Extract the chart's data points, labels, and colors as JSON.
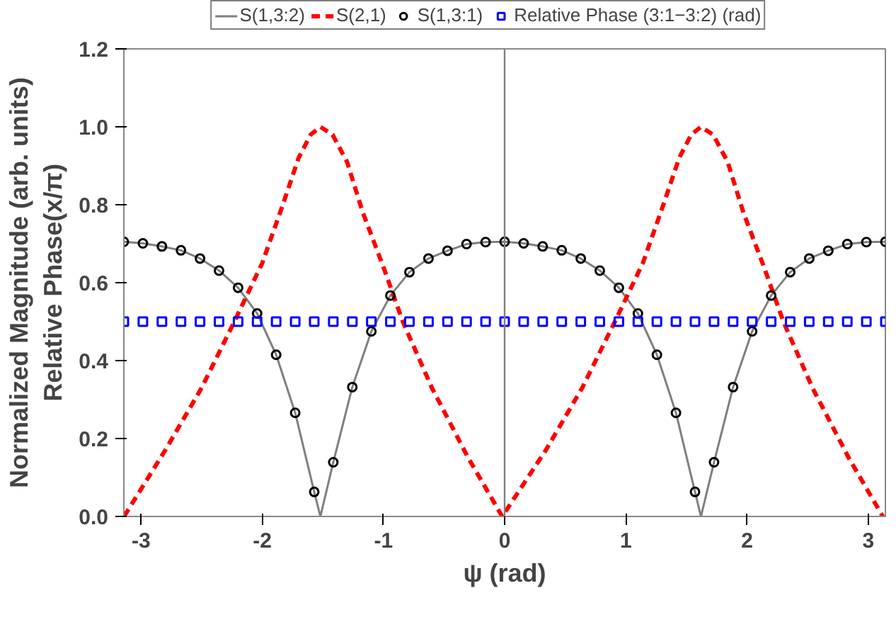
{
  "chart_data": {
    "type": "line",
    "xlabel": "ψ (rad)",
    "ylabel": "Normalized Magnitude (arb. units)\nRelative Phase(x/π)",
    "xlim": [
      -3.1416,
      3.1416
    ],
    "ylim": [
      0,
      1.2
    ],
    "xticks": [
      -3,
      -2,
      -1,
      0,
      1,
      2,
      3
    ],
    "yticks": [
      {
        "value": 0,
        "label": "0.0"
      },
      {
        "value": 0.2,
        "label": "0.2"
      },
      {
        "value": 0.4,
        "label": "0.4"
      },
      {
        "value": 0.6,
        "label": "0.6"
      },
      {
        "value": 0.8,
        "label": "0.8"
      },
      {
        "value": 1.0,
        "label": "1.0"
      },
      {
        "value": 1.2,
        "label": "1.2"
      }
    ],
    "grid": false,
    "legend": "top",
    "ref_lines": [
      {
        "axis": "x",
        "value": 0,
        "color": "#808080",
        "line_style": "solid"
      }
    ],
    "series": [
      {
        "name": "S(1,3:2)",
        "color": "#808080",
        "line_style": "solid",
        "marker": "none",
        "x": [
          -3.1416,
          -2.9845,
          -2.8274,
          -2.6704,
          -2.5133,
          -2.3562,
          -2.1991,
          -2.042,
          -1.885,
          -1.7279,
          -1.5708,
          -1.52,
          -1.4137,
          -1.2566,
          -1.0996,
          -0.9425,
          -0.7854,
          -0.6283,
          -0.4712,
          -0.3142,
          -0.1571,
          0,
          0.1571,
          0.3142,
          0.4712,
          0.6283,
          0.7854,
          0.9425,
          1.0996,
          1.2566,
          1.4137,
          1.5708,
          1.62,
          1.7279,
          1.885,
          2.042,
          2.1991,
          2.3562,
          2.5133,
          2.6704,
          2.8274,
          2.9845,
          3.1416
        ],
        "values": [
          0.705,
          0.701,
          0.693,
          0.683,
          0.662,
          0.631,
          0.587,
          0.521,
          0.415,
          0.266,
          0.063,
          0,
          0.139,
          0.332,
          0.475,
          0.567,
          0.627,
          0.662,
          0.682,
          0.699,
          0.704,
          0.705,
          0.701,
          0.693,
          0.683,
          0.662,
          0.631,
          0.587,
          0.521,
          0.415,
          0.266,
          0.063,
          0,
          0.139,
          0.332,
          0.475,
          0.567,
          0.627,
          0.662,
          0.682,
          0.699,
          0.704,
          0.705
        ]
      },
      {
        "name": "S(2,1)",
        "color": "#ff0000",
        "line_style": "dashed",
        "marker": "none",
        "x": [
          -3.14,
          -2.8,
          -2.5,
          -2.23,
          -2.0,
          -1.83,
          -1.7,
          -1.6,
          -1.52,
          -1.42,
          -1.3,
          -1.17,
          -1.0,
          -0.84,
          -0.6,
          -0.3,
          -0.02,
          0.34,
          0.64,
          0.91,
          1.14,
          1.31,
          1.44,
          1.54,
          1.62,
          1.72,
          1.84,
          1.97,
          2.14,
          2.3,
          2.54,
          2.84,
          3.12
        ],
        "values": [
          0,
          0.17,
          0.33,
          0.5,
          0.65,
          0.8,
          0.92,
          0.98,
          1.0,
          0.98,
          0.91,
          0.78,
          0.64,
          0.5,
          0.33,
          0.15,
          0,
          0.17,
          0.33,
          0.5,
          0.65,
          0.8,
          0.92,
          0.98,
          1.0,
          0.98,
          0.91,
          0.78,
          0.64,
          0.5,
          0.33,
          0.15,
          0
        ]
      },
      {
        "name": "S(1,3:1)",
        "type": "scatter",
        "color": "#000000",
        "marker": "circle",
        "x": [
          -3.1416,
          -2.9845,
          -2.8274,
          -2.6704,
          -2.5133,
          -2.3562,
          -2.1991,
          -2.042,
          -1.885,
          -1.7279,
          -1.5708,
          -1.4137,
          -1.2566,
          -1.0996,
          -0.9425,
          -0.7854,
          -0.6283,
          -0.4712,
          -0.3142,
          -0.1571,
          0,
          0.1571,
          0.3142,
          0.4712,
          0.6283,
          0.7854,
          0.9425,
          1.0996,
          1.2566,
          1.4137,
          1.5708,
          1.7279,
          1.885,
          2.042,
          2.1991,
          2.3562,
          2.5133,
          2.6704,
          2.8274,
          2.9845,
          3.1416
        ],
        "values": [
          0.705,
          0.701,
          0.693,
          0.683,
          0.662,
          0.631,
          0.587,
          0.521,
          0.415,
          0.266,
          0.063,
          0.139,
          0.332,
          0.475,
          0.567,
          0.627,
          0.662,
          0.682,
          0.699,
          0.704,
          0.705,
          0.701,
          0.693,
          0.683,
          0.662,
          0.631,
          0.587,
          0.521,
          0.415,
          0.266,
          0.063,
          0.139,
          0.332,
          0.475,
          0.567,
          0.627,
          0.662,
          0.682,
          0.699,
          0.704,
          0.705
        ]
      },
      {
        "name": "Relative Phase (3:1−3:2) (rad)",
        "type": "scatter",
        "color": "#0000ff",
        "marker": "square",
        "x": [
          -3.1416,
          -2.9845,
          -2.8274,
          -2.6704,
          -2.5133,
          -2.3562,
          -2.1991,
          -2.042,
          -1.885,
          -1.7279,
          -1.5708,
          -1.4137,
          -1.2566,
          -1.0996,
          -0.9425,
          -0.7854,
          -0.6283,
          -0.4712,
          -0.3142,
          -0.1571,
          0,
          0.1571,
          0.3142,
          0.4712,
          0.6283,
          0.7854,
          0.9425,
          1.0996,
          1.2566,
          1.4137,
          1.5708,
          1.7279,
          1.885,
          2.042,
          2.1991,
          2.3562,
          2.5133,
          2.6704,
          2.8274,
          2.9845,
          3.1416
        ],
        "values": [
          0.5,
          0.5,
          0.5,
          0.5,
          0.5,
          0.5,
          0.5,
          0.5,
          0.5,
          0.5,
          0.5,
          0.5,
          0.5,
          0.5,
          0.5,
          0.5,
          0.5,
          0.5,
          0.5,
          0.5,
          0.5,
          0.5,
          0.5,
          0.5,
          0.5,
          0.5,
          0.5,
          0.5,
          0.5,
          0.5,
          0.5,
          0.5,
          0.5,
          0.5,
          0.5,
          0.5,
          0.5,
          0.5,
          0.5,
          0.5,
          0.5
        ]
      }
    ]
  }
}
